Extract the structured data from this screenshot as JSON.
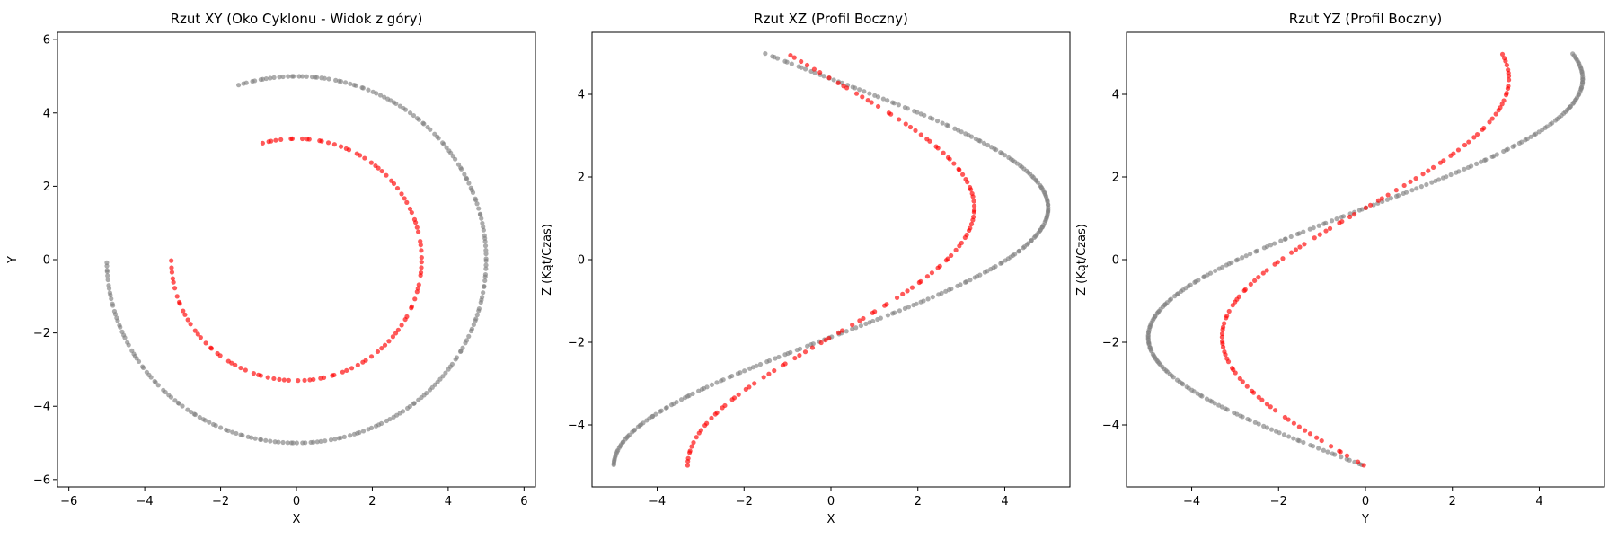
{
  "chart_data": [
    {
      "type": "scatter",
      "title": "Rzut XY (Oko Cyklonu - Widok z góry)",
      "xlabel": "X",
      "ylabel": "Y",
      "xlim": [
        -6.3,
        6.3
      ],
      "ylim": [
        -6.2,
        6.2
      ],
      "xticks": [
        -6,
        -4,
        -2,
        0,
        2,
        4,
        6
      ],
      "yticks": [
        -6,
        -4,
        -2,
        0,
        2,
        4,
        6
      ],
      "xticklabels": [
        "−6",
        "−4",
        "−2",
        "0",
        "2",
        "4",
        "6"
      ],
      "yticklabels": [
        "−6",
        "−4",
        "−2",
        "0",
        "2",
        "4",
        "6"
      ],
      "grid": false,
      "series": [
        {
          "color": "#808080",
          "shape": "circle",
          "radius": 5.0,
          "z_from": -5,
          "z_to": 5,
          "turns": 0.8,
          "count": 240
        },
        {
          "color": "#ff0000",
          "shape": "circle",
          "radius": 3.3,
          "z_from": -5,
          "z_to": 5,
          "turns": 0.8,
          "count": 110
        }
      ]
    },
    {
      "type": "scatter",
      "title": "Rzut XZ (Profil Boczny)",
      "xlabel": "X",
      "ylabel": "Z (Kąt/Czas)",
      "xlim": [
        -5.5,
        5.5
      ],
      "ylim": [
        -5.5,
        5.5
      ],
      "xticks": [
        -4,
        -2,
        0,
        2,
        4
      ],
      "yticks": [
        -4,
        -2,
        0,
        2,
        4
      ],
      "xticklabels": [
        "−4",
        "−2",
        "0",
        "2",
        "4"
      ],
      "yticklabels": [
        "−4",
        "−2",
        "0",
        "2",
        "4"
      ],
      "grid": false,
      "series": [
        {
          "color": "#808080",
          "shape": "sine-x",
          "radius": 5.0,
          "z_from": -5,
          "z_to": 5,
          "turns": 0.8,
          "count": 240
        },
        {
          "color": "#ff0000",
          "shape": "sine-x",
          "radius": 3.3,
          "z_from": -5,
          "z_to": 5,
          "turns": 0.8,
          "count": 110
        }
      ]
    },
    {
      "type": "scatter",
      "title": "Rzut YZ (Profil Boczny)",
      "xlabel": "Y",
      "ylabel": "Z (Kąt/Czas)",
      "xlim": [
        -5.5,
        5.5
      ],
      "ylim": [
        -5.5,
        5.5
      ],
      "xticks": [
        -4,
        -2,
        0,
        2,
        4
      ],
      "yticks": [
        -4,
        -2,
        0,
        2,
        4
      ],
      "xticklabels": [
        "−4",
        "−2",
        "0",
        "2",
        "4"
      ],
      "yticklabels": [
        "−4",
        "−2",
        "0",
        "2",
        "4"
      ],
      "grid": false,
      "series": [
        {
          "color": "#808080",
          "shape": "sine-y",
          "radius": 5.0,
          "z_from": -5,
          "z_to": 5,
          "turns": 0.8,
          "count": 240
        },
        {
          "color": "#ff0000",
          "shape": "sine-y",
          "radius": 3.3,
          "z_from": -5,
          "z_to": 5,
          "turns": 0.8,
          "count": 110
        }
      ]
    }
  ]
}
